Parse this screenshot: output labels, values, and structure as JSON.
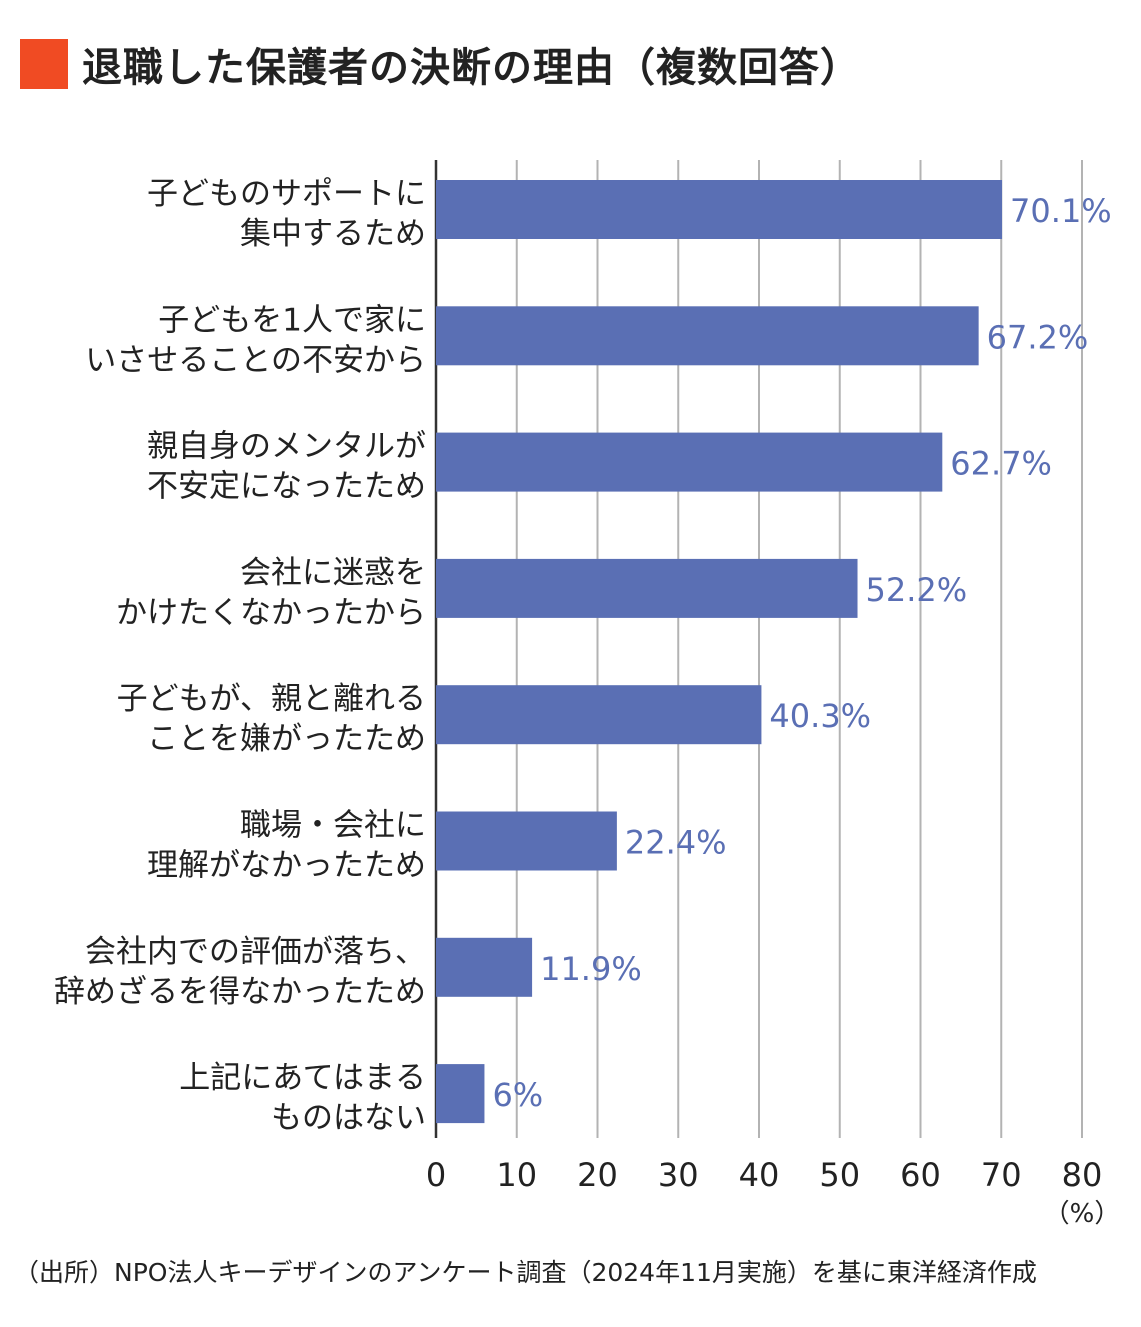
{
  "title": "退職した保護者の決断の理由（複数回答）",
  "source": "（出所）NPO法人キーデザインのアンケート調査（2024年11月実施）を基に東洋経済作成",
  "colors": {
    "accent": "#f04b23",
    "bar": "#5a6fb4",
    "grid": "#b3b3b3",
    "axis": "#333333"
  },
  "chart_data": {
    "type": "bar",
    "orientation": "horizontal",
    "categories": [
      [
        "子どものサポートに",
        "集中するため"
      ],
      [
        "子どもを1人で家に",
        "いさせることの不安から"
      ],
      [
        "親自身のメンタルが",
        "不安定になったため"
      ],
      [
        "会社に迷惑を",
        "かけたくなかったから"
      ],
      [
        "子どもが、親と離れる",
        "ことを嫌がったため"
      ],
      [
        "職場・会社に",
        "理解がなかったため"
      ],
      [
        "会社内での評価が落ち、",
        "辞めざるを得なかったため"
      ],
      [
        "上記にあてはまる",
        "ものはない"
      ]
    ],
    "values": [
      70.1,
      67.2,
      62.7,
      52.2,
      40.3,
      22.4,
      11.9,
      6
    ],
    "value_labels": [
      "70.1%",
      "67.2%",
      "62.7%",
      "52.2%",
      "40.3%",
      "22.4%",
      "11.9%",
      "6%"
    ],
    "xlim": [
      0,
      80
    ],
    "xticks": [
      0,
      10,
      20,
      30,
      40,
      50,
      60,
      70,
      80
    ],
    "xunit": "（%）",
    "grid": true
  }
}
